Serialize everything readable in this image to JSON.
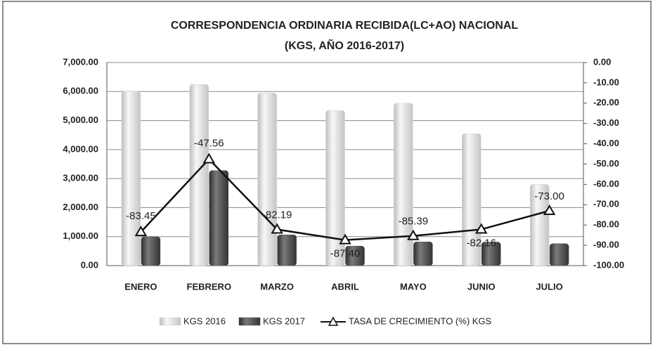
{
  "chart_data": {
    "type": "bar-line",
    "title": "CORRESPONDENCIA ORDINARIA RECIBIDA(LC+AO) NACIONAL",
    "subtitle": "(KGS, AÑO 2016-2017)",
    "categories": [
      "ENERO",
      "FEBRERO",
      "MARZO",
      "ABRIL",
      "MAYO",
      "JUNIO",
      "JULIO"
    ],
    "series": [
      {
        "name": "KGS 2016",
        "type": "bar",
        "color": "#d9d9d9",
        "values": [
          6000,
          6250,
          5950,
          5350,
          5600,
          4550,
          2800
        ]
      },
      {
        "name": "KGS 2017",
        "type": "bar",
        "color": "#505050",
        "values": [
          993,
          3278,
          1060,
          674,
          818,
          812,
          756
        ]
      },
      {
        "name": "TASA DE CRECIMIENTO  (%) KGS",
        "type": "line",
        "axis": "y2",
        "color": "#111111",
        "values": [
          -83.45,
          -47.56,
          -82.19,
          -87.4,
          -85.39,
          -82.16,
          -73
        ],
        "value_labels": [
          "-83.45",
          "-47.56",
          "-82.19",
          "-87.40",
          "-85.39",
          "-82.16",
          "-73.00"
        ]
      }
    ],
    "ylim": [
      0,
      7000
    ],
    "yticks": [
      {
        "value": 0,
        "label": "0.00"
      },
      {
        "value": 1000,
        "label": "1,000.00"
      },
      {
        "value": 2000,
        "label": "2,000.00"
      },
      {
        "value": 3000,
        "label": "3,000.00"
      },
      {
        "value": 4000,
        "label": "4,000.00"
      },
      {
        "value": 5000,
        "label": "5,000.00"
      },
      {
        "value": 6000,
        "label": "6,000.00"
      },
      {
        "value": 7000,
        "label": "7,000.00"
      }
    ],
    "y2lim": [
      -100,
      0
    ],
    "y2ticks": [
      {
        "value": 0,
        "label": "0.00"
      },
      {
        "value": -10,
        "label": "-10.00"
      },
      {
        "value": -20,
        "label": "-20.00"
      },
      {
        "value": -30,
        "label": "-30.00"
      },
      {
        "value": -40,
        "label": "-40.00"
      },
      {
        "value": -50,
        "label": "-50.00"
      },
      {
        "value": -60,
        "label": "-60.00"
      },
      {
        "value": -70,
        "label": "-70.00"
      },
      {
        "value": -80,
        "label": "-80.00"
      },
      {
        "value": -90,
        "label": "-90.00"
      },
      {
        "value": -100,
        "label": "-100.00"
      }
    ],
    "grid": true,
    "legend": "bottom"
  }
}
